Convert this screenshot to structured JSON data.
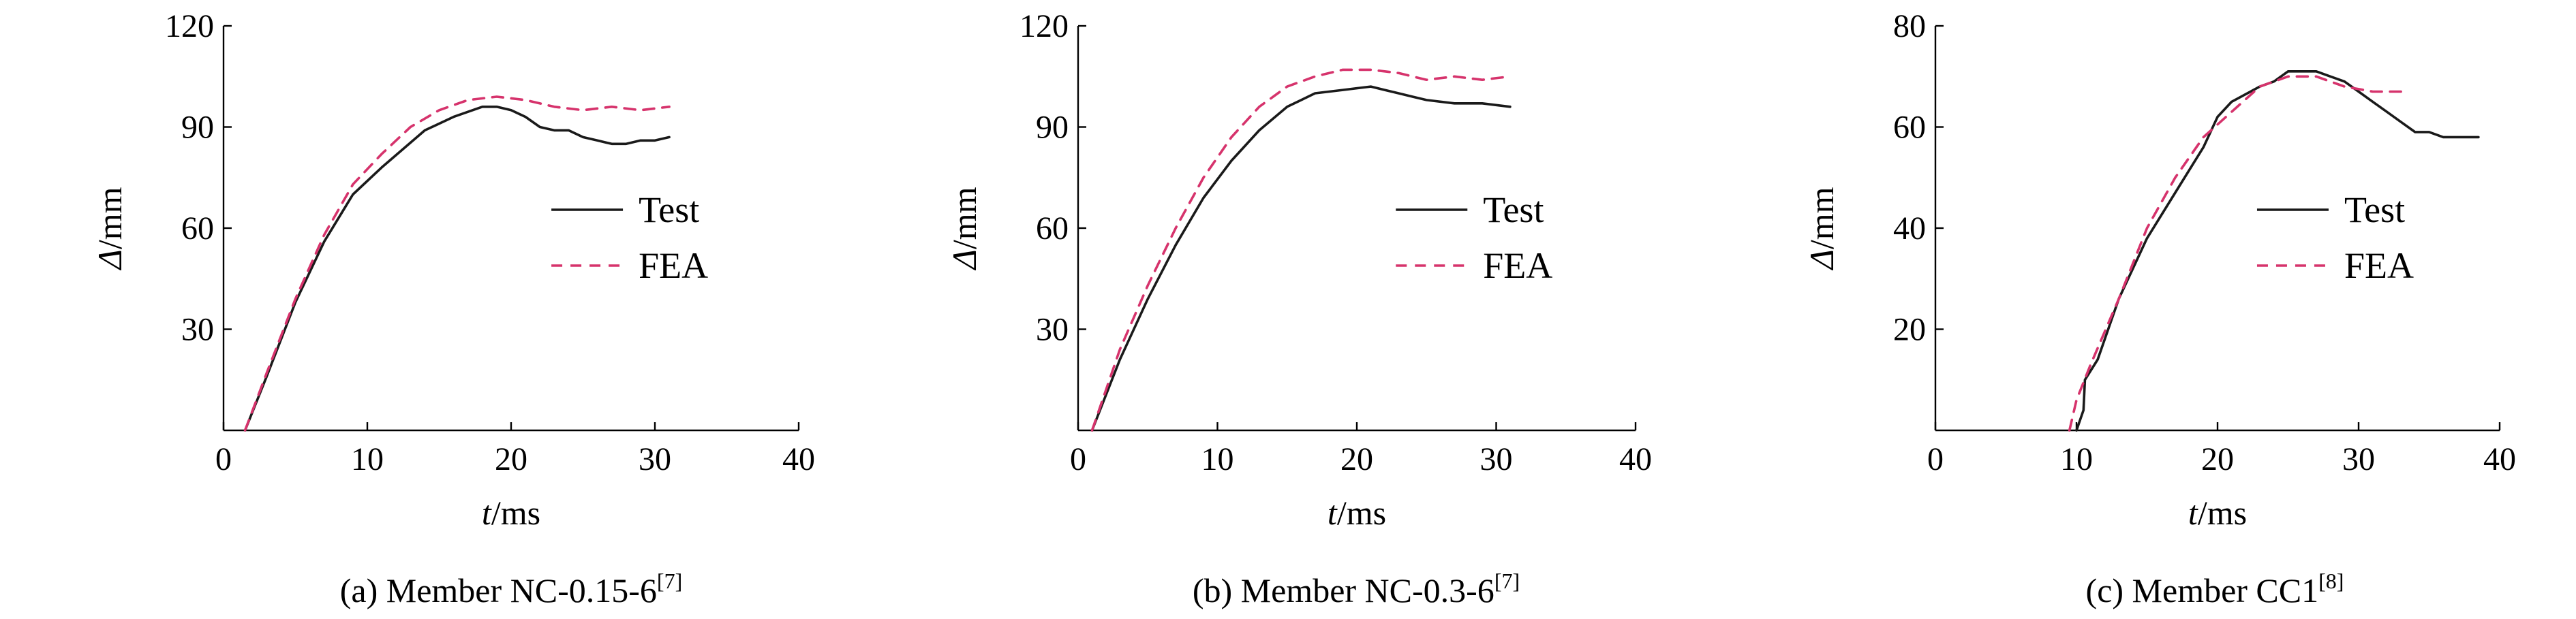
{
  "colors": {
    "test": "#1a1a1a",
    "fea": "#d6336c",
    "axis": "#000000"
  },
  "chart_data": [
    {
      "type": "line",
      "caption": {
        "text": "(a) Member NC-0.15-6",
        "ref": "[7]"
      },
      "xlabel": {
        "var": "t",
        "unit": "/ms"
      },
      "ylabel": {
        "var": "Δ",
        "unit": "/mm"
      },
      "xlim": [
        0,
        40
      ],
      "ylim": [
        0,
        120
      ],
      "xticks": [
        0,
        10,
        20,
        30,
        40
      ],
      "yticks": [
        30,
        60,
        90,
        120
      ],
      "legend": {
        "position": "center-right",
        "entries": [
          "Test",
          "FEA"
        ]
      },
      "series": [
        {
          "name": "Test",
          "style": "solid",
          "x": [
            1.5,
            3,
            5,
            7,
            9,
            11,
            14,
            16,
            18,
            19,
            20,
            21,
            22,
            23,
            24,
            25,
            26,
            27,
            28,
            29,
            30,
            31
          ],
          "y": [
            0,
            16,
            38,
            56,
            70,
            78,
            89,
            93,
            96,
            96,
            95,
            93,
            90,
            89,
            89,
            87,
            86,
            85,
            85,
            86,
            86,
            87
          ]
        },
        {
          "name": "FEA",
          "style": "dashed",
          "x": [
            1.5,
            3,
            5,
            7,
            9,
            11,
            13,
            15,
            17,
            19,
            21,
            23,
            25,
            27,
            29,
            31
          ],
          "y": [
            0,
            17,
            39,
            58,
            73,
            82,
            90,
            95,
            98,
            99,
            98,
            96,
            95,
            96,
            95,
            96
          ]
        }
      ]
    },
    {
      "type": "line",
      "caption": {
        "text": "(b) Member NC-0.3-6",
        "ref": "[7]"
      },
      "xlabel": {
        "var": "t",
        "unit": "/ms"
      },
      "ylabel": {
        "var": "Δ",
        "unit": "/mm"
      },
      "xlim": [
        0,
        40
      ],
      "ylim": [
        0,
        120
      ],
      "xticks": [
        0,
        10,
        20,
        30,
        40
      ],
      "yticks": [
        30,
        60,
        90,
        120
      ],
      "legend": {
        "position": "center-right",
        "entries": [
          "Test",
          "FEA"
        ]
      },
      "series": [
        {
          "name": "Test",
          "style": "solid",
          "x": [
            1,
            3,
            5,
            7,
            9,
            11,
            13,
            15,
            17,
            19,
            21,
            22,
            23,
            24,
            25,
            27,
            29,
            31
          ],
          "y": [
            0,
            21,
            39,
            55,
            69,
            80,
            89,
            96,
            100,
            101,
            102,
            101,
            100,
            99,
            98,
            97,
            97,
            96
          ]
        },
        {
          "name": "FEA",
          "style": "dashed",
          "x": [
            1,
            3,
            5,
            7,
            9,
            11,
            13,
            15,
            17,
            19,
            21,
            23,
            25,
            27,
            29,
            31
          ],
          "y": [
            0,
            24,
            43,
            60,
            75,
            87,
            96,
            102,
            105,
            107,
            107,
            106,
            104,
            105,
            104,
            105
          ]
        }
      ]
    },
    {
      "type": "line",
      "caption": {
        "text": "(c) Member CC1",
        "ref": "[8]"
      },
      "xlabel": {
        "var": "t",
        "unit": "/ms"
      },
      "ylabel": {
        "var": "Δ",
        "unit": "/mm"
      },
      "xlim": [
        0,
        40
      ],
      "ylim": [
        0,
        80
      ],
      "xticks": [
        0,
        10,
        20,
        30,
        40
      ],
      "yticks": [
        20,
        40,
        60,
        80
      ],
      "legend": {
        "position": "center-right",
        "entries": [
          "Test",
          "FEA"
        ]
      },
      "series": [
        {
          "name": "Test",
          "style": "solid",
          "x": [
            10,
            10.5,
            10.6,
            11.5,
            13,
            15,
            17,
            19,
            20,
            21,
            23,
            24,
            25,
            26,
            27,
            28,
            29,
            30,
            31,
            32,
            33,
            34,
            35,
            36,
            37,
            38,
            38.5
          ],
          "y": [
            0,
            4,
            10,
            14,
            26,
            38,
            47,
            56,
            62,
            65,
            68,
            69,
            71,
            71,
            71,
            70,
            69,
            67,
            65,
            63,
            61,
            59,
            59,
            58,
            58,
            58,
            58
          ]
        },
        {
          "name": "FEA",
          "style": "dashed",
          "x": [
            9.5,
            10,
            11,
            13,
            15,
            17,
            19,
            21,
            23,
            25,
            27,
            29,
            31,
            33
          ],
          "y": [
            0,
            6,
            13,
            26,
            40,
            50,
            58,
            63,
            68,
            70,
            70,
            68,
            67,
            67
          ]
        }
      ]
    }
  ]
}
